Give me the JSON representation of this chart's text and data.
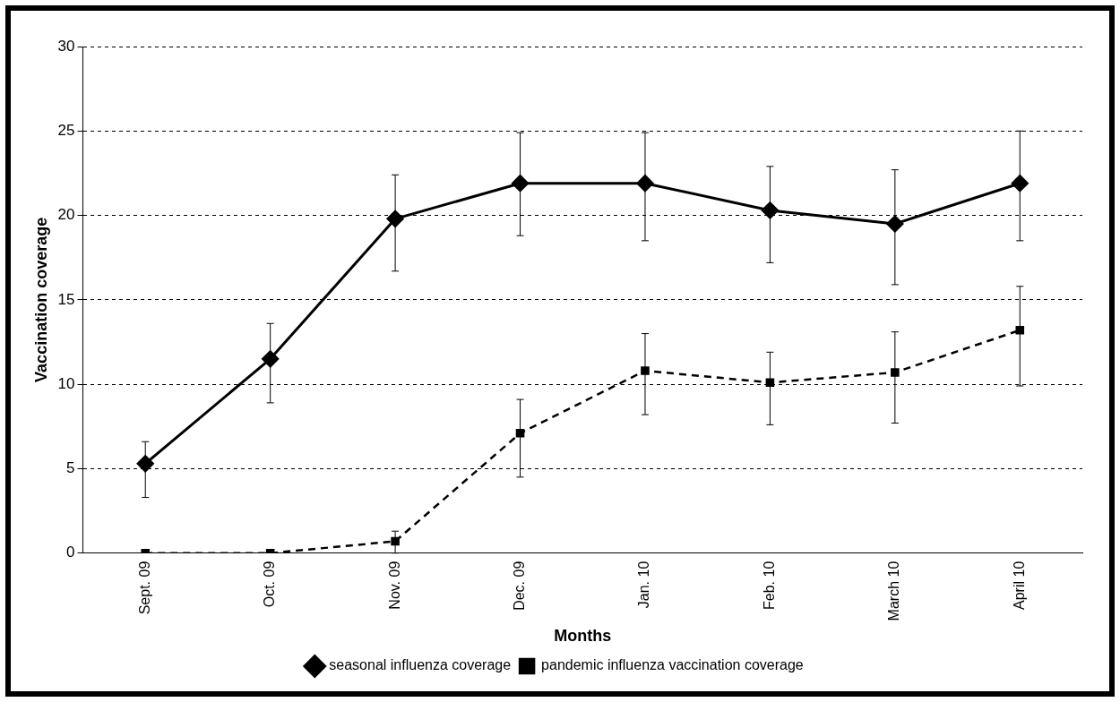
{
  "chart_data": {
    "type": "line",
    "xlabel": "Months",
    "ylabel": "Vaccination coverage",
    "categories": [
      "Sept. 09",
      "Oct. 09",
      "Nov. 09",
      "Dec. 09",
      "Jan. 10",
      "Feb. 10",
      "March 10",
      "April 10"
    ],
    "series": [
      {
        "name": "seasonal influenza coverage",
        "color": "#000000",
        "marker": "diamond",
        "line_style": "solid",
        "values": [
          5.3,
          11.5,
          19.8,
          21.9,
          21.9,
          20.3,
          19.5,
          21.9
        ],
        "errors": [
          [
            3.3,
            6.6
          ],
          [
            8.9,
            13.6
          ],
          [
            16.7,
            22.4
          ],
          [
            18.8,
            24.9
          ],
          [
            18.5,
            24.9
          ],
          [
            17.2,
            22.9
          ],
          [
            15.9,
            22.7
          ],
          [
            18.5,
            25.0
          ]
        ]
      },
      {
        "name": "pandemic influenza vaccination coverage",
        "color": "#000000",
        "marker": "square",
        "line_style": "dashed",
        "values": [
          0,
          0,
          0.7,
          7.1,
          10.8,
          10.1,
          10.7,
          13.2
        ],
        "errors": [
          null,
          null,
          [
            0,
            1.3
          ],
          [
            4.5,
            9.1
          ],
          [
            8.2,
            13.0
          ],
          [
            7.6,
            11.9
          ],
          [
            7.7,
            13.1
          ],
          [
            9.9,
            15.8
          ]
        ]
      }
    ],
    "ylim": [
      0,
      30
    ],
    "yticks": [
      0,
      5,
      10,
      15,
      20,
      25,
      30
    ],
    "grid": "y",
    "legend": "bottom"
  }
}
